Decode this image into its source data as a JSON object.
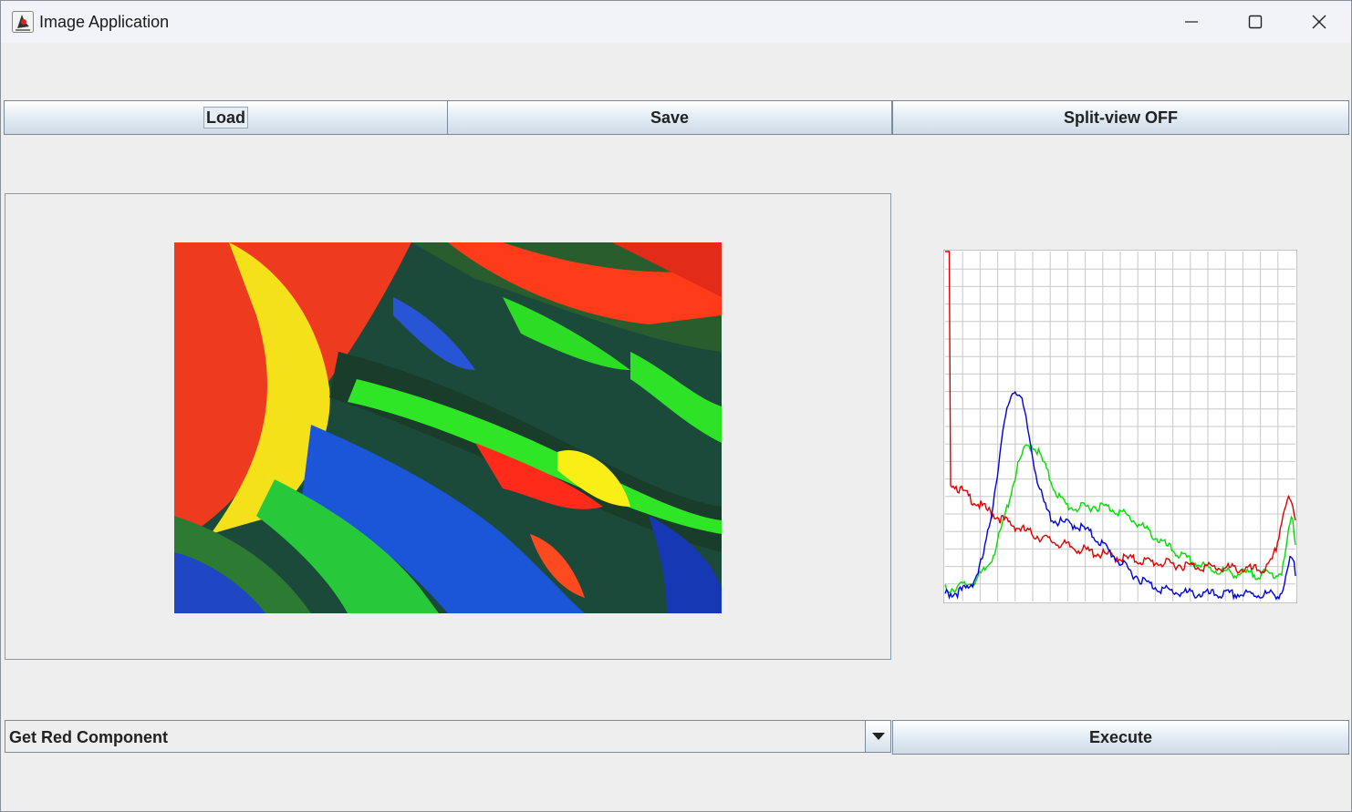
{
  "window": {
    "title": "Image Application",
    "icons": {
      "app": "java-duke-icon",
      "minimize": "minimize-icon",
      "maximize": "maximize-icon",
      "close": "close-icon"
    }
  },
  "toolbar": {
    "load_label": "Load",
    "save_label": "Save",
    "split_view_label": "Split-view OFF"
  },
  "operation": {
    "selected": "Get Red Component",
    "execute_label": "Execute"
  },
  "histogram": {
    "channels": {
      "red": "#e00000",
      "green": "#00dd00",
      "blue": "#0000dd"
    },
    "grid_color": "#c8c8c8"
  }
}
